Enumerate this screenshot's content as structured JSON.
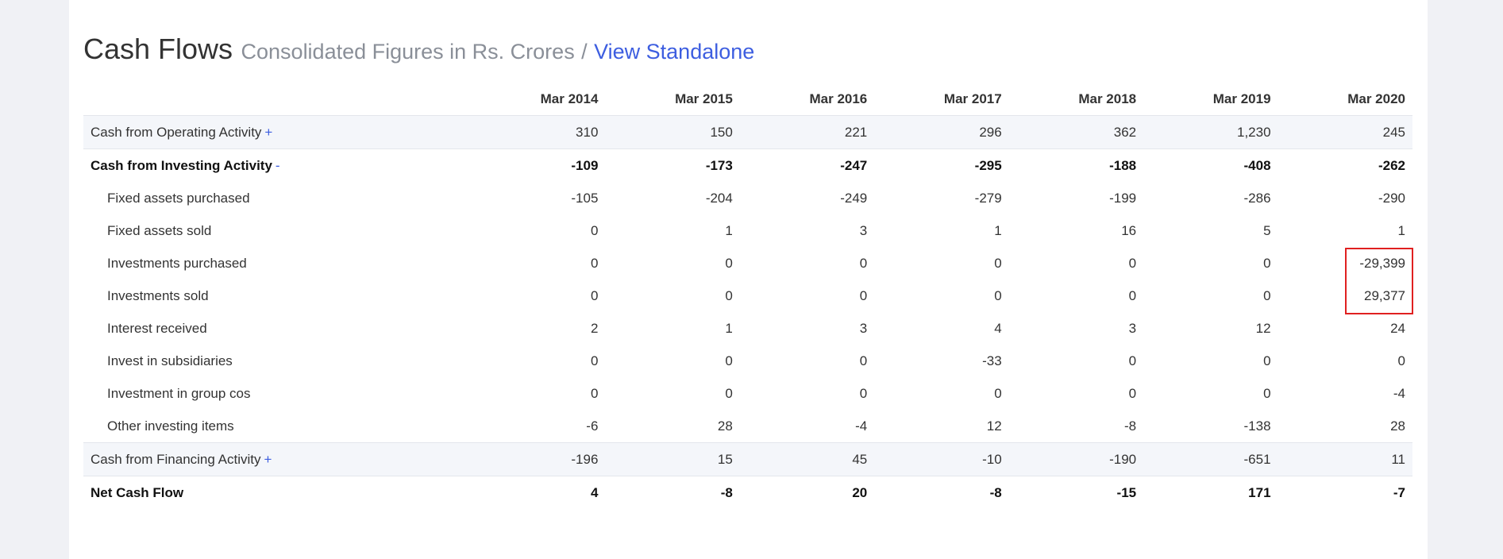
{
  "heading": {
    "title": "Cash Flows",
    "subtitle": "Consolidated Figures in Rs. Crores",
    "separator": "/",
    "link": "View Standalone"
  },
  "table": {
    "columns": [
      "Mar 2014",
      "Mar 2015",
      "Mar 2016",
      "Mar 2017",
      "Mar 2018",
      "Mar 2019",
      "Mar 2020"
    ],
    "rows": [
      {
        "label": "Cash from Operating Activity",
        "toggle": "+",
        "values": [
          "310",
          "150",
          "221",
          "296",
          "362",
          "1,230",
          "245"
        ]
      },
      {
        "label": "Cash from Investing Activity",
        "toggle": "-",
        "values": [
          "-109",
          "-173",
          "-247",
          "-295",
          "-188",
          "-408",
          "-262"
        ]
      },
      {
        "label": "Fixed assets purchased",
        "values": [
          "-105",
          "-204",
          "-249",
          "-279",
          "-199",
          "-286",
          "-290"
        ]
      },
      {
        "label": "Fixed assets sold",
        "values": [
          "0",
          "1",
          "3",
          "1",
          "16",
          "5",
          "1"
        ]
      },
      {
        "label": "Investments purchased",
        "values": [
          "0",
          "0",
          "0",
          "0",
          "0",
          "0",
          "-29,399"
        ]
      },
      {
        "label": "Investments sold",
        "values": [
          "0",
          "0",
          "0",
          "0",
          "0",
          "0",
          "29,377"
        ]
      },
      {
        "label": "Interest received",
        "values": [
          "2",
          "1",
          "3",
          "4",
          "3",
          "12",
          "24"
        ]
      },
      {
        "label": "Invest in subsidiaries",
        "values": [
          "0",
          "0",
          "0",
          "-33",
          "0",
          "0",
          "0"
        ]
      },
      {
        "label": "Investment in group cos",
        "values": [
          "0",
          "0",
          "0",
          "0",
          "0",
          "0",
          "-4"
        ]
      },
      {
        "label": "Other investing items",
        "values": [
          "-6",
          "28",
          "-4",
          "12",
          "-8",
          "-138",
          "28"
        ]
      },
      {
        "label": "Cash from Financing Activity",
        "toggle": "+",
        "values": [
          "-196",
          "15",
          "45",
          "-10",
          "-190",
          "-651",
          "11"
        ]
      },
      {
        "label": "Net Cash Flow",
        "values": [
          "4",
          "-8",
          "20",
          "-8",
          "-15",
          "171",
          "-7"
        ]
      }
    ]
  },
  "colors": {
    "link": "#3d5ee0",
    "highlight_border": "#e02020",
    "shaded_row": "#f4f6fa"
  }
}
